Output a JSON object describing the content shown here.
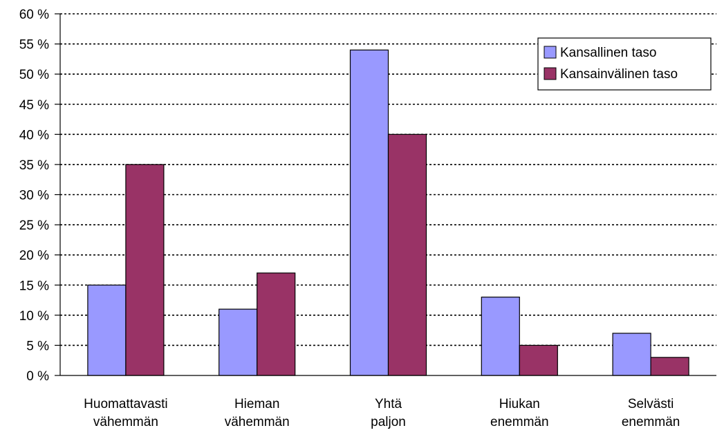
{
  "chart_data": {
    "type": "bar",
    "categories": [
      [
        "Huomattavasti",
        "vähemmän"
      ],
      [
        "Hieman",
        "vähemmän"
      ],
      [
        "Yhtä",
        "paljon"
      ],
      [
        "Hiukan",
        "enemmän"
      ],
      [
        "Selvästi",
        "enemmän"
      ]
    ],
    "series": [
      {
        "name": "Kansallinen taso",
        "color": "#9999ff",
        "values": [
          15,
          11,
          54,
          13,
          7
        ]
      },
      {
        "name": "Kansainvälinen taso",
        "color": "#993366",
        "values": [
          35,
          17,
          40,
          5,
          3
        ]
      }
    ],
    "ylim": [
      0,
      60
    ],
    "ystep": 5,
    "ytick_labels": [
      "0 %",
      "5 %",
      "10 %",
      "15 %",
      "20 %",
      "25 %",
      "30 %",
      "35 %",
      "40 %",
      "45 %",
      "50 %",
      "55 %",
      "60 %"
    ],
    "grid": "dotted horizontal",
    "legend_position": "top-right",
    "title": "",
    "xlabel": "",
    "ylabel": ""
  }
}
